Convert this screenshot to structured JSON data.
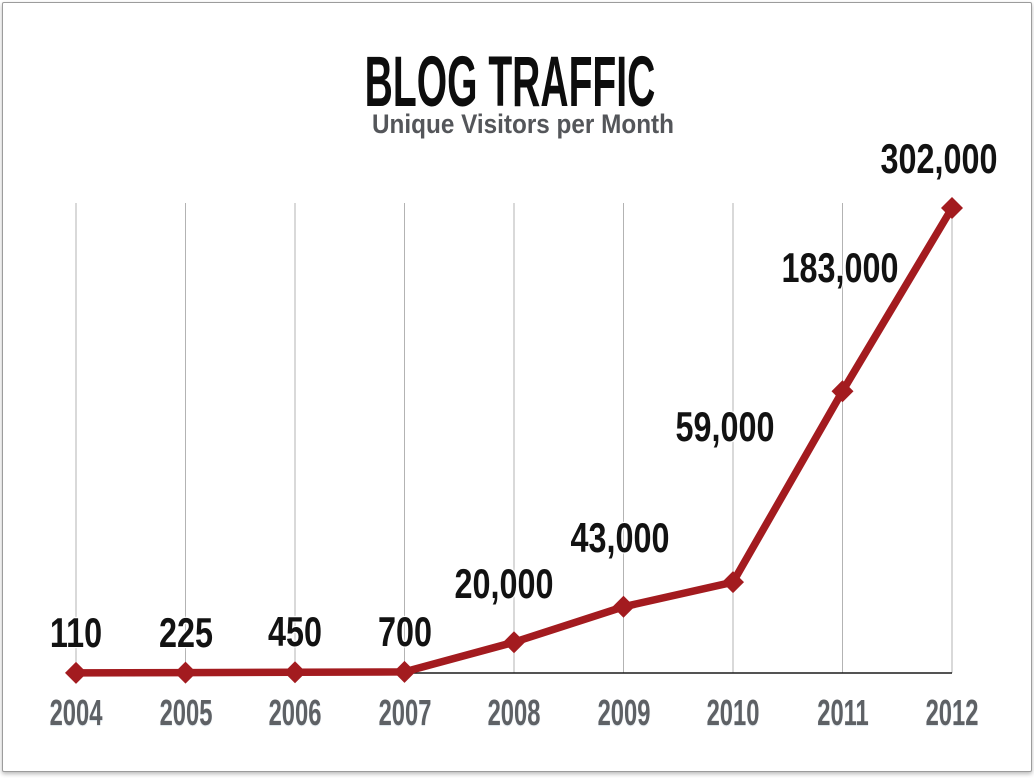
{
  "page": {
    "background": "#ffffff",
    "border_color": "#9c9c9c"
  },
  "chart_data": {
    "type": "line",
    "title": "BLOG TRAFFIC",
    "subtitle": "Unique Visitors per Month",
    "categories": [
      "2004",
      "2005",
      "2006",
      "2007",
      "2008",
      "2009",
      "2010",
      "2011",
      "2012"
    ],
    "values": [
      110,
      225,
      450,
      700,
      20000,
      43000,
      59000,
      183000,
      302000
    ],
    "value_labels": [
      "110",
      "225",
      "450",
      "700",
      "20,000",
      "43,000",
      "59,000",
      "183,000",
      "302,000"
    ],
    "xlabel": "",
    "ylabel": "",
    "ylim": [
      0,
      302000
    ],
    "legend": "none",
    "grid": "vertical-only",
    "marker": "diamond",
    "colors": {
      "line": "#a31b1f",
      "marker": "#a31b1f",
      "gridline": "#b3b3b3",
      "axis_line": "#1b1b1b",
      "data_label": "#121212",
      "tick_label": "#5e6165",
      "title": "#0d0d0d",
      "subtitle": "#54565a"
    }
  }
}
